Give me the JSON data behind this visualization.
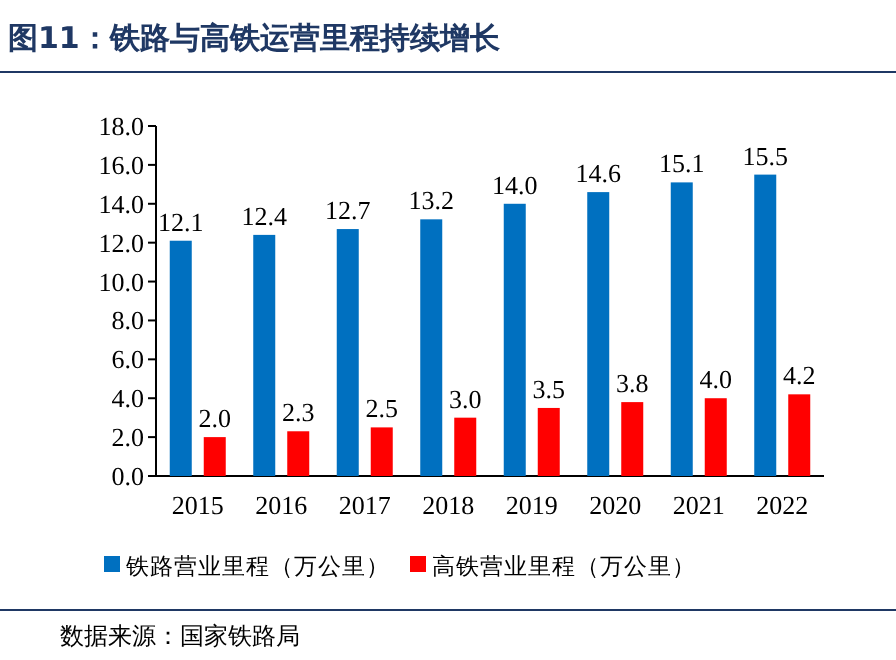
{
  "chart_data": {
    "type": "bar",
    "title": "图11：铁路与高铁运营里程持续增长",
    "categories": [
      "2015",
      "2016",
      "2017",
      "2018",
      "2019",
      "2020",
      "2021",
      "2022"
    ],
    "series": [
      {
        "name": "铁路营业里程（万公里）",
        "color": "#0070c0",
        "values": [
          12.1,
          12.4,
          12.7,
          13.2,
          14.0,
          14.6,
          15.1,
          15.5
        ],
        "value_labels": [
          "12.1",
          "12.4",
          "12.7",
          "13.2",
          "14.0",
          "14.6",
          "15.1",
          "15.5"
        ]
      },
      {
        "name": "高铁营业里程（万公里）",
        "color": "#ff0000",
        "values": [
          2.0,
          2.3,
          2.5,
          3.0,
          3.5,
          3.8,
          4.0,
          4.2
        ],
        "value_labels": [
          "2.0",
          "2.3",
          "2.5",
          "3.0",
          "3.5",
          "3.8",
          "4.0",
          "4.2"
        ]
      }
    ],
    "ylim": [
      0,
      18
    ],
    "yticks": [
      {
        "value": 0,
        "label": "0.0"
      },
      {
        "value": 2,
        "label": "2.0"
      },
      {
        "value": 4,
        "label": "4.0"
      },
      {
        "value": 6,
        "label": "6.0"
      },
      {
        "value": 8,
        "label": "8.0"
      },
      {
        "value": 10,
        "label": "10.0"
      },
      {
        "value": 12,
        "label": "12.0"
      },
      {
        "value": 14,
        "label": "14.0"
      },
      {
        "value": 16,
        "label": "16.0"
      },
      {
        "value": 18,
        "label": "18.0"
      }
    ],
    "legend": "bottom",
    "annotations": [
      "数据来源：国家铁路局"
    ]
  }
}
